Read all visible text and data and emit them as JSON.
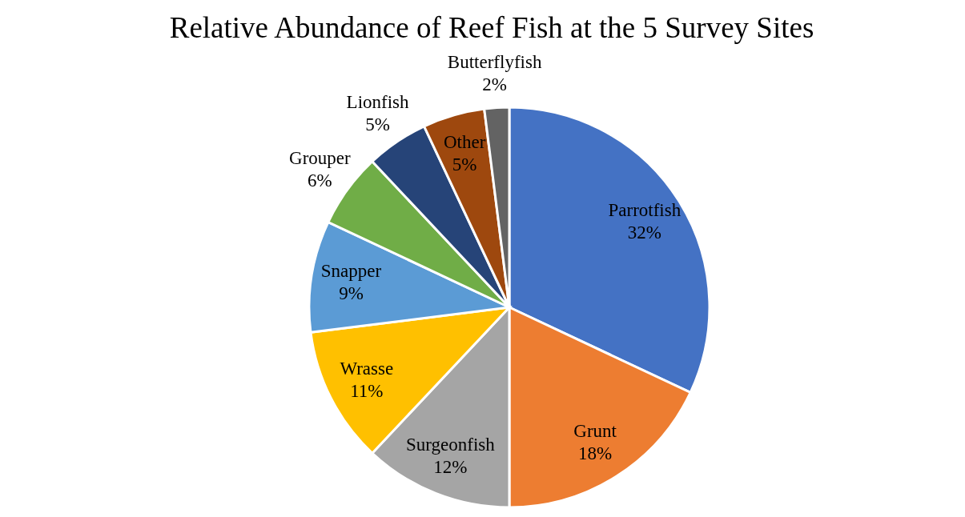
{
  "chart_data": {
    "type": "pie",
    "title": "Relative Abundance of Reef Fish at the 5 Survey Sites",
    "categories": [
      "Parrotfish",
      "Grunt",
      "Surgeonfish",
      "Wrasse",
      "Snapper",
      "Grouper",
      "Lionfish",
      "Other",
      "Butterflyfish"
    ],
    "values": [
      32,
      18,
      12,
      11,
      9,
      6,
      5,
      5,
      2
    ],
    "value_labels": [
      "32%",
      "18%",
      "12%",
      "11%",
      "9%",
      "6%",
      "5%",
      "5%",
      "2%"
    ],
    "colors": [
      "#4472c4",
      "#ed7d31",
      "#a5a5a5",
      "#ffc000",
      "#5b9bd5",
      "#70ad47",
      "#264478",
      "#9e480e",
      "#636363"
    ]
  }
}
